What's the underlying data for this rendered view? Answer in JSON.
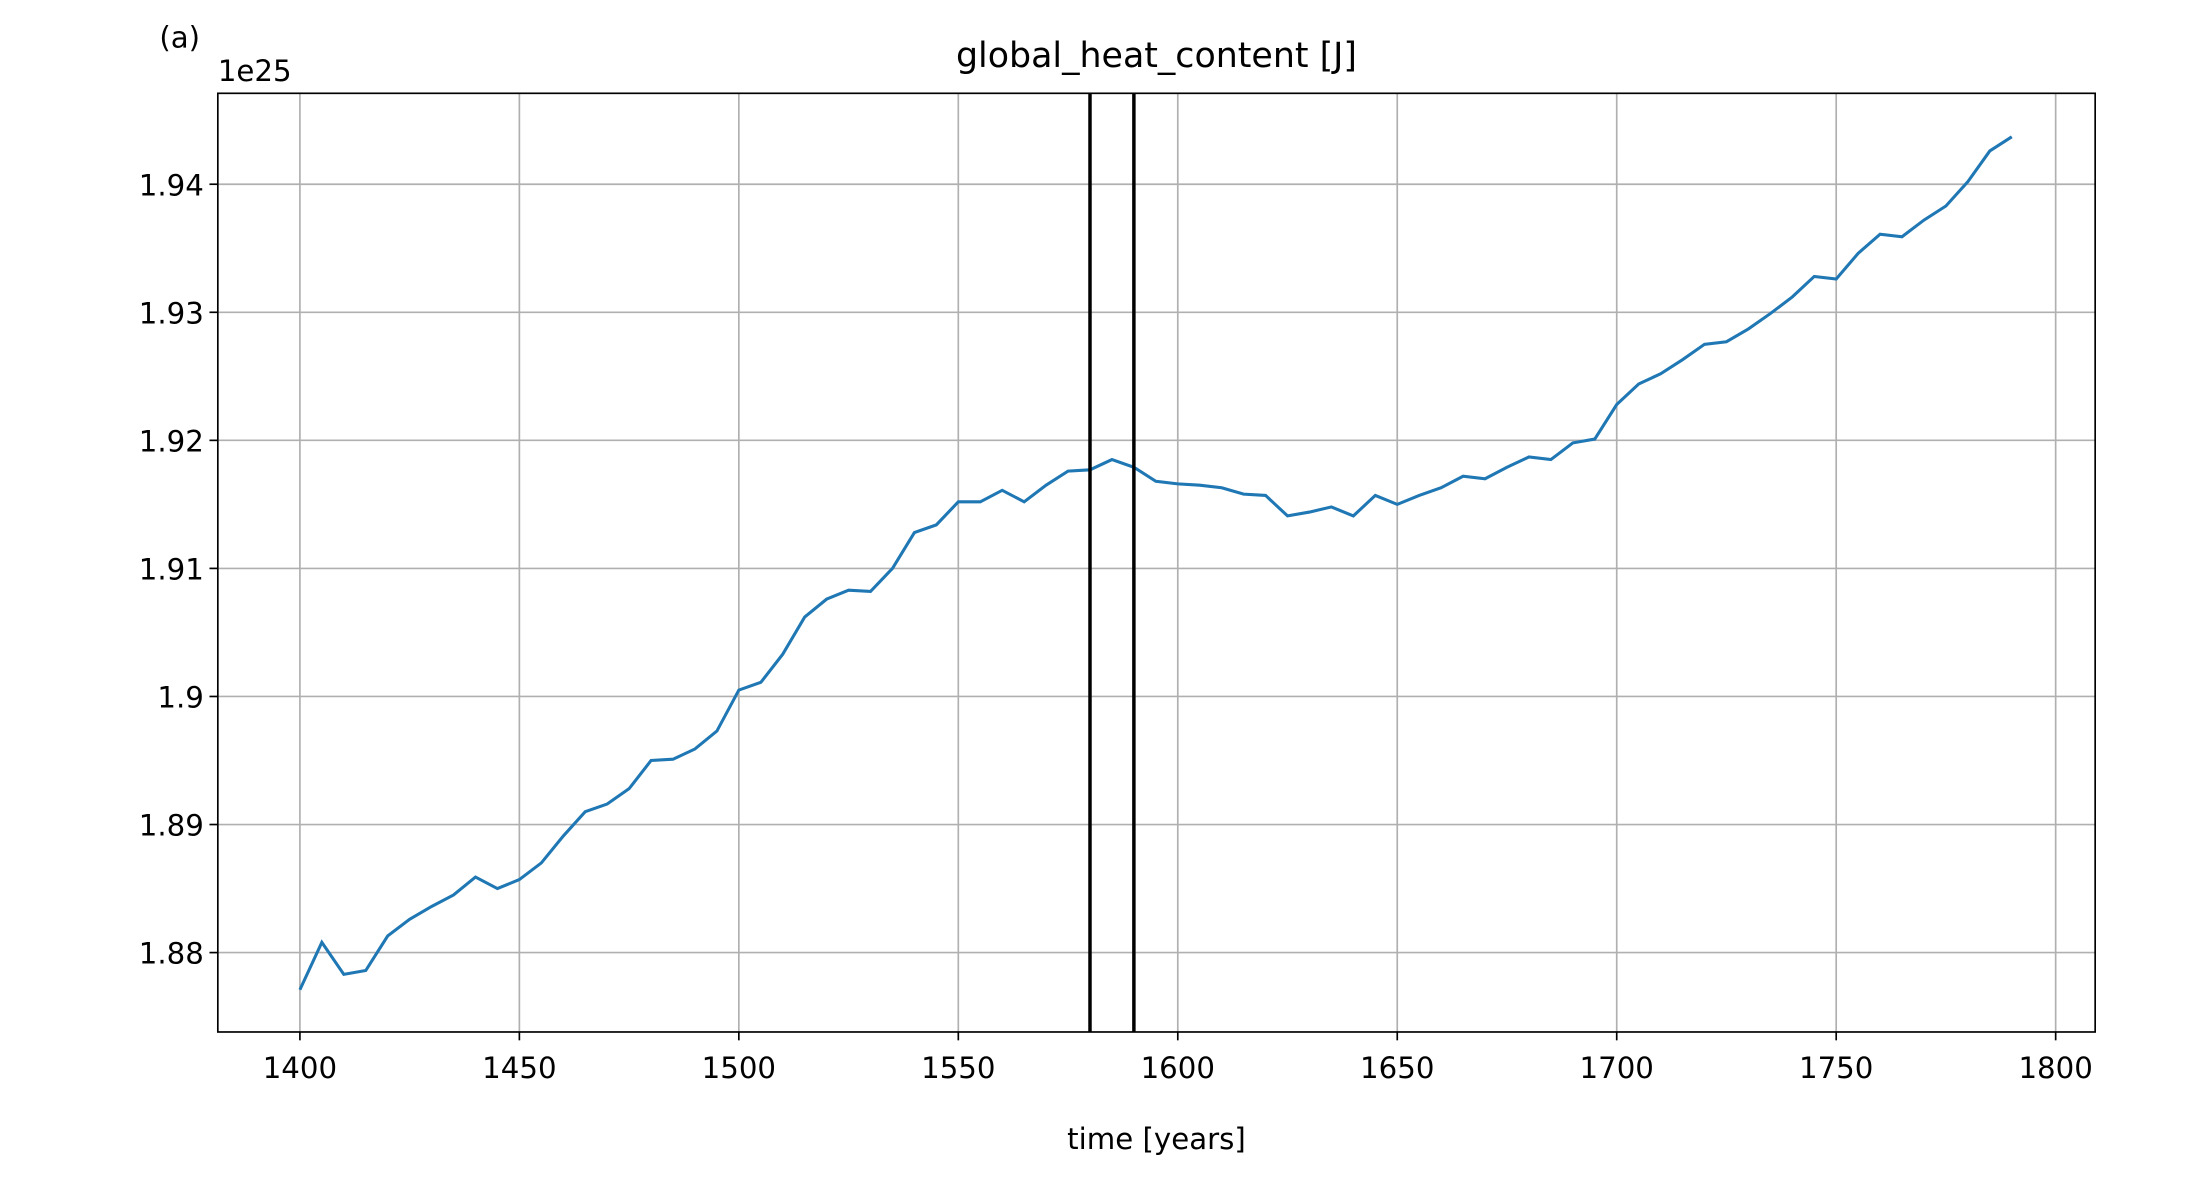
{
  "chart_data": {
    "type": "line",
    "title": "global_heat_content [J]",
    "panel_label": "(a)",
    "y_offset_label": "1e25",
    "x_label": "time [years]",
    "x": [
      1400,
      1405,
      1410,
      1415,
      1420,
      1425,
      1430,
      1435,
      1440,
      1445,
      1450,
      1455,
      1460,
      1465,
      1470,
      1475,
      1480,
      1485,
      1490,
      1495,
      1500,
      1505,
      1510,
      1515,
      1520,
      1525,
      1530,
      1535,
      1540,
      1545,
      1550,
      1555,
      1560,
      1565,
      1570,
      1575,
      1580,
      1585,
      1590,
      1595,
      1600,
      1605,
      1610,
      1615,
      1620,
      1625,
      1630,
      1635,
      1640,
      1645,
      1650,
      1655,
      1660,
      1665,
      1670,
      1675,
      1680,
      1685,
      1690,
      1695,
      1700,
      1705,
      1710,
      1715,
      1720,
      1725,
      1730,
      1735,
      1740,
      1745,
      1750,
      1755,
      1760,
      1765,
      1770,
      1775,
      1780,
      1785,
      1790
    ],
    "series": [
      {
        "color": "#1f77b4",
        "values": [
          1.8771,
          1.8808,
          1.8783,
          1.8786,
          1.8813,
          1.8826,
          1.8836,
          1.8845,
          1.8859,
          1.885,
          1.8857,
          1.887,
          1.8891,
          1.891,
          1.8916,
          1.8928,
          1.895,
          1.8951,
          1.8959,
          1.8973,
          1.9005,
          1.9011,
          1.9033,
          1.9062,
          1.9076,
          1.9083,
          1.9082,
          1.91,
          1.9128,
          1.9134,
          1.9152,
          1.9152,
          1.9161,
          1.9152,
          1.9165,
          1.9176,
          1.9177,
          1.9185,
          1.9179,
          1.9168,
          1.9166,
          1.9165,
          1.9163,
          1.9158,
          1.9157,
          1.9141,
          1.9144,
          1.9148,
          1.9141,
          1.9157,
          1.915,
          1.9157,
          1.9163,
          1.9172,
          1.917,
          1.9179,
          1.9187,
          1.9185,
          1.9198,
          1.9201,
          1.9228,
          1.9244,
          1.9252,
          1.9263,
          1.9275,
          1.9277,
          1.9287,
          1.9299,
          1.9312,
          1.9328,
          1.9326,
          1.9346,
          1.9361,
          1.9359,
          1.9372,
          1.9383,
          1.9402,
          1.9426,
          1.9437
        ]
      }
    ],
    "vlines": [
      1580,
      1590
    ],
    "vline_color": "#000000",
    "xlim": [
      1381.3,
      1809.0
    ],
    "ylim": [
      1.8738,
      1.9471
    ],
    "xticks": [
      1400,
      1450,
      1500,
      1550,
      1600,
      1650,
      1700,
      1750,
      1800
    ],
    "yticks": [
      1.88,
      1.89,
      1.9,
      1.91,
      1.92,
      1.93,
      1.94
    ],
    "grid": true
  }
}
